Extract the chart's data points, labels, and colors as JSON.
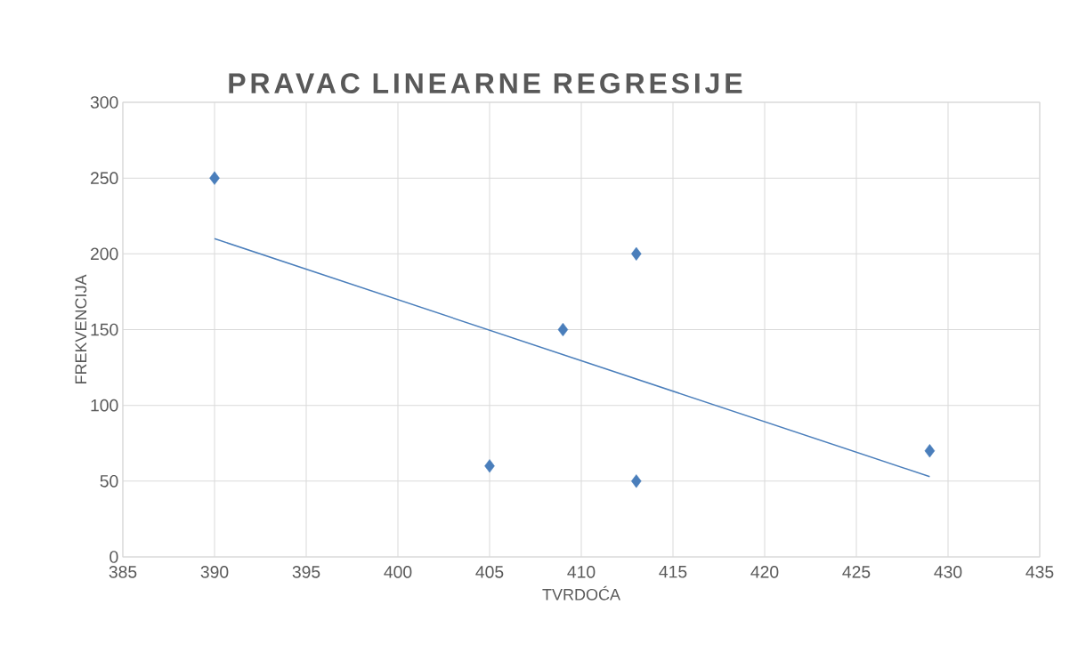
{
  "chart_data": {
    "type": "scatter",
    "title": "PRAVAC LINEARNE REGRESIJE",
    "xlabel": "TVRDOĆA",
    "ylabel": "FREKVENCIJA",
    "series": [
      {
        "color": "#4a7ebb",
        "marker": "diamond",
        "x": [
          390,
          405,
          409,
          413,
          413,
          429
        ],
        "values": [
          250,
          60,
          150,
          200,
          50,
          70
        ]
      },
      {
        "type": "line",
        "color": "#4a7ebb",
        "marker": "none",
        "line_style": "solid",
        "x": [
          390,
          429
        ],
        "values": [
          210,
          53
        ]
      }
    ],
    "xlim": [
      385,
      435
    ],
    "xticks": [
      385,
      390,
      395,
      400,
      405,
      410,
      415,
      420,
      425,
      430,
      435
    ],
    "ylim": [
      0,
      300
    ],
    "yticks": [
      0,
      50,
      100,
      150,
      200,
      250,
      300
    ],
    "grid": true
  }
}
